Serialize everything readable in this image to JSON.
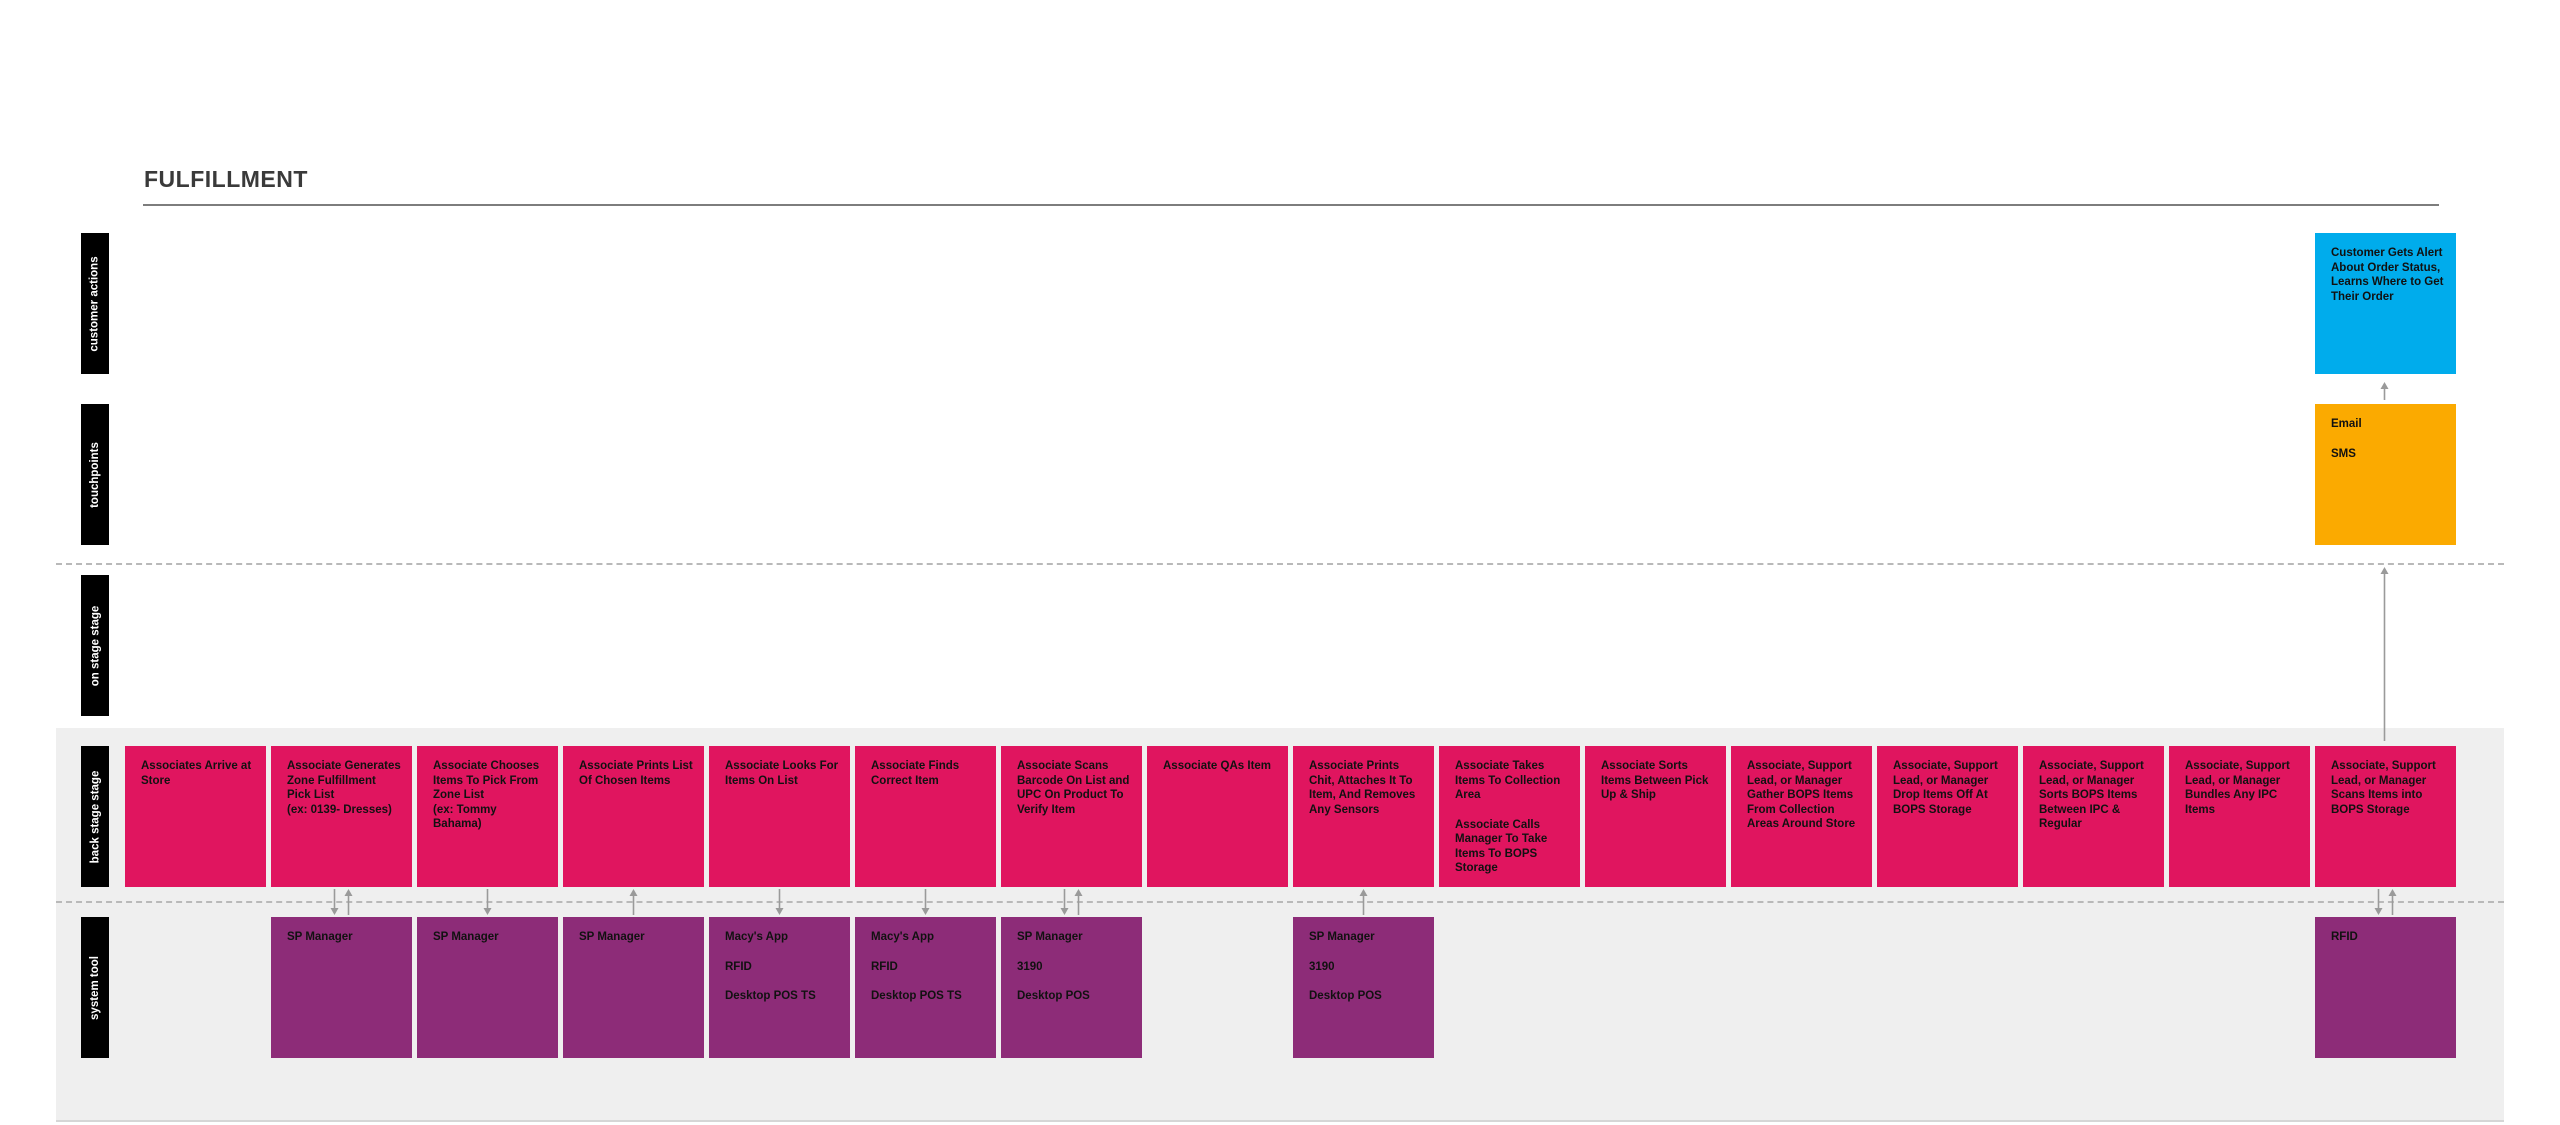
{
  "page": {
    "title": "FULFILLMENT"
  },
  "lanes": [
    {
      "id": "customer",
      "label": "customer actions"
    },
    {
      "id": "touchpoints",
      "label": "touchpoints"
    },
    {
      "id": "onstage",
      "label": "on stage stage"
    },
    {
      "id": "backstage",
      "label": "back stage stage"
    },
    {
      "id": "system",
      "label": "system tool"
    }
  ],
  "customer_actions": [
    "Customer Gets Alert About Order Status, Learns Where to Get Their Order"
  ],
  "touchpoints": [
    {
      "lines": [
        "Email",
        "SMS"
      ]
    }
  ],
  "backstage": [
    {
      "text": "Associates Arrive at Store"
    },
    {
      "text": "Associate Generates Zone Fulfillment Pick List\n(ex: 0139- Dresses)"
    },
    {
      "text": "Associate Chooses Items To Pick From Zone List\n(ex: Tommy Bahama)"
    },
    {
      "text": "Associate Prints List Of Chosen Items"
    },
    {
      "text": "Associate Looks For Items On List"
    },
    {
      "text": "Associate Finds Correct Item"
    },
    {
      "text": "Associate Scans Barcode On List and UPC On Product To Verify Item"
    },
    {
      "text": "Associate QAs Item"
    },
    {
      "text": "Associate Prints Chit, Attaches It To Item, And Removes Any Sensors"
    },
    {
      "text": "Associate Takes Items To Collection Area",
      "text2": "Associate Calls Manager To Take Items To BOPS Storage"
    },
    {
      "text": "Associate Sorts Items Between Pick Up & Ship"
    },
    {
      "text": "Associate, Support Lead, or Manager Gather BOPS Items From Collection Areas Around Store"
    },
    {
      "text": "Associate, Support Lead, or Manager Drop Items Off At BOPS Storage"
    },
    {
      "text": "Associate, Support Lead, or Manager Sorts BOPS Items Between IPC & Regular"
    },
    {
      "text": "Associate, Support Lead, or Manager Bundles Any IPC Items"
    },
    {
      "text": "Associate, Support Lead, or Manager Scans Items into BOPS Storage"
    }
  ],
  "system_tools": [
    {
      "col": 1,
      "lines": [
        "SP Manager"
      ]
    },
    {
      "col": 2,
      "lines": [
        "SP Manager"
      ]
    },
    {
      "col": 3,
      "lines": [
        "SP Manager"
      ]
    },
    {
      "col": 4,
      "lines": [
        "Macy's App",
        "RFID",
        "Desktop POS TS"
      ]
    },
    {
      "col": 5,
      "lines": [
        "Macy's App",
        "RFID",
        "Desktop POS TS"
      ]
    },
    {
      "col": 6,
      "lines": [
        "SP Manager",
        "3190",
        "Desktop POS"
      ]
    },
    {
      "col": 8,
      "lines": [
        "SP Manager",
        "3190",
        "Desktop POS"
      ]
    },
    {
      "col": 15,
      "lines": [
        "RFID"
      ]
    }
  ],
  "connectors": [
    {
      "col": 1,
      "type": "both"
    },
    {
      "col": 2,
      "type": "down"
    },
    {
      "col": 3,
      "type": "up"
    },
    {
      "col": 4,
      "type": "down"
    },
    {
      "col": 5,
      "type": "down"
    },
    {
      "col": 6,
      "type": "both"
    },
    {
      "col": 8,
      "type": "up"
    },
    {
      "col": 15,
      "type": "both"
    }
  ],
  "colors": {
    "backstage": "#e0155f",
    "system": "#8d2c78",
    "customer": "#00acec",
    "touchpoint": "#fbaa00",
    "lane_label": "#000000"
  }
}
